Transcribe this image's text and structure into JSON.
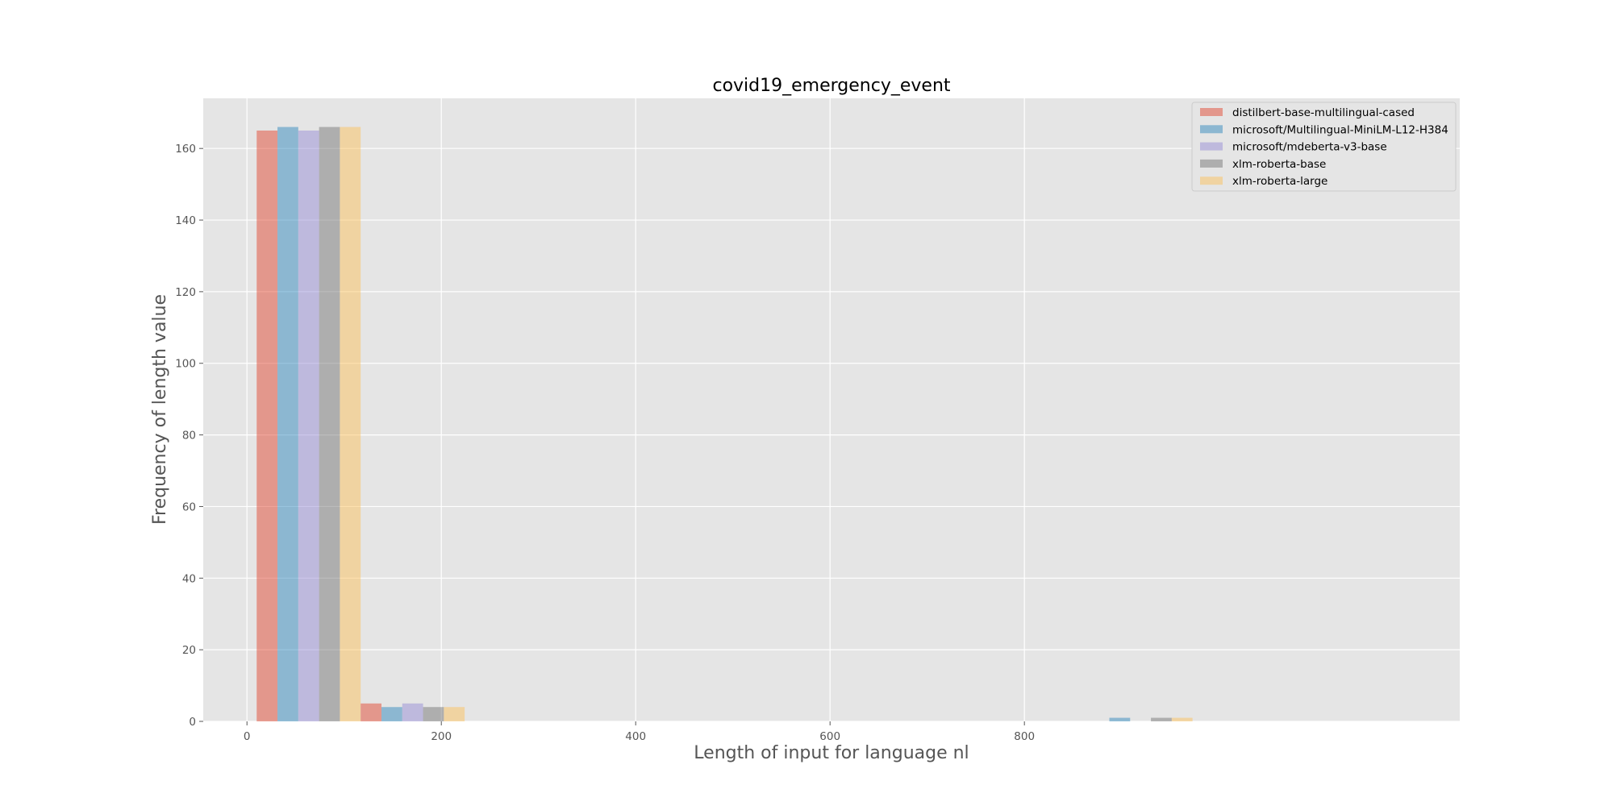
{
  "chart_data": {
    "type": "bar",
    "title": "covid19_emergency_event",
    "xlabel": "Length of input for language nl",
    "ylabel": "Frequency of length value",
    "xlim": [
      -45,
      1248
    ],
    "ylim": [
      0,
      174
    ],
    "xticks": [
      0,
      200,
      400,
      600,
      800
    ],
    "yticks": [
      0,
      20,
      40,
      60,
      80,
      100,
      120,
      140,
      160
    ],
    "grid": true,
    "legend_position": "top-right",
    "bin_edges": [
      10,
      117,
      224,
      331,
      438,
      545,
      652,
      759,
      866,
      973
    ],
    "series": [
      {
        "name": "distilbert-base-multilingual-cased",
        "color": "#E24A33",
        "values": [
          165,
          5,
          0,
          0,
          0,
          0,
          0,
          0,
          0
        ]
      },
      {
        "name": "microsoft/Multilingual-MiniLM-L12-H384",
        "color": "#348ABD",
        "values": [
          166,
          4,
          0,
          0,
          0,
          0,
          0,
          0,
          1
        ]
      },
      {
        "name": "microsoft/mdeberta-v3-base",
        "color": "#988ED5",
        "values": [
          165,
          5,
          0,
          0,
          0,
          0,
          0,
          0,
          0
        ]
      },
      {
        "name": "xlm-roberta-base",
        "color": "#777777",
        "values": [
          166,
          4,
          0,
          0,
          0,
          0,
          0,
          0,
          1
        ]
      },
      {
        "name": "xlm-roberta-large",
        "color": "#FBC15E",
        "values": [
          166,
          4,
          0,
          0,
          0,
          0,
          0,
          0,
          1
        ]
      }
    ]
  }
}
